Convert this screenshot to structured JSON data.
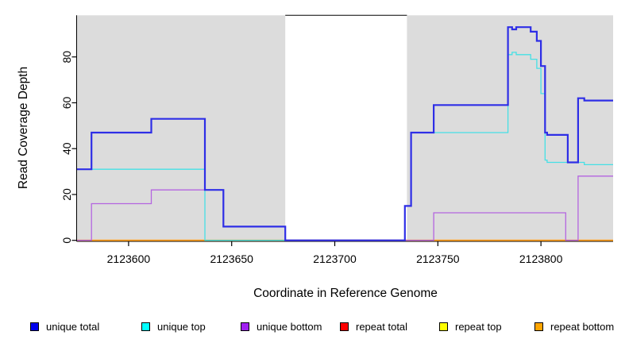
{
  "chart_data": {
    "type": "line",
    "subtype": "step-coverage",
    "xlabel": "Coordinate in Reference Genome",
    "ylabel": "Read Coverage Depth",
    "xlim": [
      2123575,
      2123835
    ],
    "ylim": [
      0,
      98
    ],
    "grid": false,
    "legend_position": "bottom",
    "x_ticks": [
      {
        "value": 2123600,
        "label": "2123600"
      },
      {
        "value": 2123650,
        "label": "2123650"
      },
      {
        "value": 2123700,
        "label": "2123700"
      },
      {
        "value": 2123750,
        "label": "2123750"
      },
      {
        "value": 2123800,
        "label": "2123800"
      }
    ],
    "y_ticks": [
      {
        "value": 0,
        "label": "0"
      },
      {
        "value": 20,
        "label": "20"
      },
      {
        "value": 40,
        "label": "40"
      },
      {
        "value": 60,
        "label": "60"
      },
      {
        "value": 80,
        "label": "80"
      }
    ],
    "shaded_regions": [
      {
        "from": 2123575,
        "to": 2123676
      },
      {
        "from": 2123735,
        "to": 2123835
      }
    ],
    "shade_color": "#dcdcdc",
    "axis_color": "#000000",
    "draw_order": [
      3,
      4,
      5,
      2,
      1,
      0
    ],
    "series": [
      {
        "name": "unique total",
        "color": "#0000ee",
        "line_color": "#2e2ee6",
        "width": 2.2,
        "steps": [
          [
            2123575,
            31
          ],
          [
            2123582,
            47
          ],
          [
            2123611,
            53
          ],
          [
            2123637,
            22
          ],
          [
            2123646,
            6
          ],
          [
            2123676,
            0
          ],
          [
            2123734,
            15
          ],
          [
            2123737,
            47
          ],
          [
            2123748,
            59
          ],
          [
            2123784,
            93
          ],
          [
            2123786,
            92
          ],
          [
            2123788,
            93
          ],
          [
            2123795,
            91
          ],
          [
            2123798,
            87
          ],
          [
            2123800,
            76
          ],
          [
            2123802,
            47
          ],
          [
            2123803,
            46
          ],
          [
            2123813,
            34
          ],
          [
            2123818,
            62
          ],
          [
            2123821,
            61
          ]
        ]
      },
      {
        "name": "unique top",
        "color": "#00ffff",
        "line_color": "#45e0e5",
        "width": 1.3,
        "steps": [
          [
            2123575,
            31
          ],
          [
            2123637,
            0
          ],
          [
            2123734,
            15
          ],
          [
            2123737,
            47
          ],
          [
            2123784,
            81
          ],
          [
            2123786,
            82
          ],
          [
            2123788,
            81
          ],
          [
            2123795,
            79
          ],
          [
            2123798,
            75
          ],
          [
            2123800,
            64
          ],
          [
            2123802,
            35
          ],
          [
            2123803,
            34
          ],
          [
            2123821,
            33
          ]
        ]
      },
      {
        "name": "unique bottom",
        "color": "#a020f0",
        "line_color": "#b465e0",
        "width": 1.3,
        "steps": [
          [
            2123575,
            0
          ],
          [
            2123582,
            16
          ],
          [
            2123611,
            22
          ],
          [
            2123646,
            6
          ],
          [
            2123676,
            0
          ],
          [
            2123748,
            12
          ],
          [
            2123812,
            0
          ],
          [
            2123818,
            28
          ]
        ]
      },
      {
        "name": "repeat total",
        "color": "#ff0000",
        "line_color": "#e86070",
        "width": 1.2,
        "steps": [
          [
            2123575,
            0
          ]
        ]
      },
      {
        "name": "repeat top",
        "color": "#ffff00",
        "line_color": "#d8e870",
        "width": 1.2,
        "steps": [
          [
            2123575,
            0
          ]
        ]
      },
      {
        "name": "repeat bottom",
        "color": "#ffa500",
        "line_color": "#ffa020",
        "width": 1.8,
        "steps": [
          [
            2123575,
            0
          ]
        ]
      }
    ]
  }
}
